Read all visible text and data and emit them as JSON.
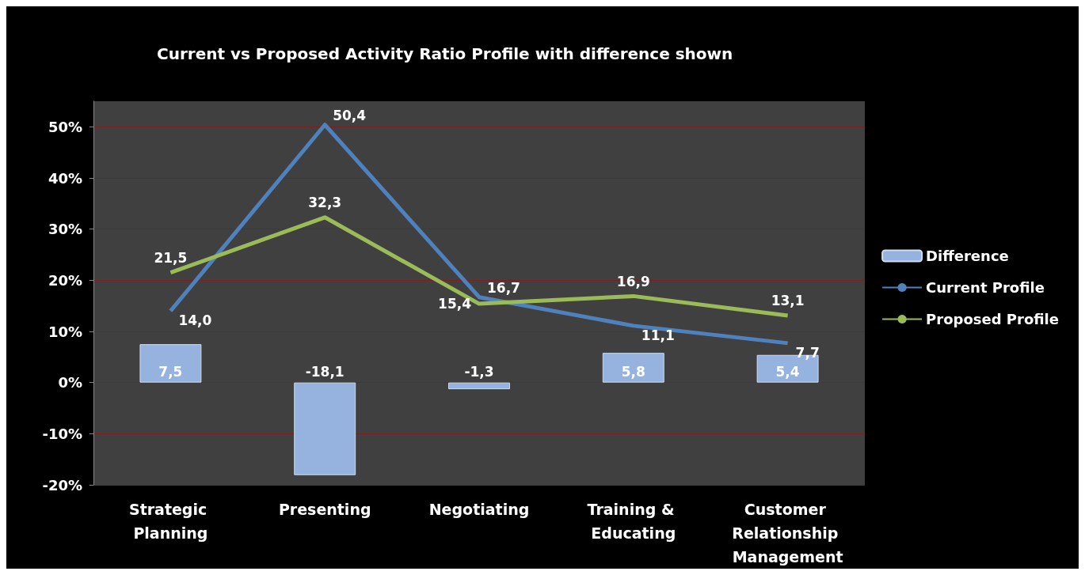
{
  "chart_data": {
    "type": "line",
    "title": "Current vs Proposed Activity Ratio Profile with difference shown",
    "categories": [
      "Strategic Planning",
      "Presenting",
      "Negotiating",
      "Training & Educating",
      "Customer Relationship Management"
    ],
    "series": [
      {
        "name": "Difference",
        "type": "bar",
        "color": "#95b3de",
        "values": [
          7.5,
          -18.1,
          -1.3,
          5.8,
          5.4
        ],
        "value_labels": [
          "7,5",
          "-18,1",
          "-1,3",
          "5,8",
          "5,4"
        ]
      },
      {
        "name": "Current Profile",
        "color": "#4f81bd",
        "values": [
          14.0,
          50.4,
          16.7,
          11.1,
          7.7
        ],
        "value_labels": [
          "14,0",
          "50,4",
          "16,7",
          "11,1",
          "7,7"
        ]
      },
      {
        "name": "Proposed Profile",
        "color": "#9bbb59",
        "values": [
          21.5,
          32.3,
          15.4,
          16.9,
          13.1
        ],
        "value_labels": [
          "21,5",
          "32,3",
          "15,4",
          "16,9",
          "13,1"
        ]
      }
    ],
    "ylim": [
      -20,
      55
    ],
    "yticks": [
      {
        "value": -20,
        "label": "-20%"
      },
      {
        "value": -10,
        "label": "-10%"
      },
      {
        "value": 0,
        "label": "0%"
      },
      {
        "value": 10,
        "label": "10%"
      },
      {
        "value": 20,
        "label": "20%"
      },
      {
        "value": 30,
        "label": "30%"
      },
      {
        "value": 40,
        "label": "40%"
      },
      {
        "value": 50,
        "label": "50%"
      }
    ],
    "grid": "y",
    "legend": "right",
    "marker": "none",
    "line_style": "solid"
  }
}
